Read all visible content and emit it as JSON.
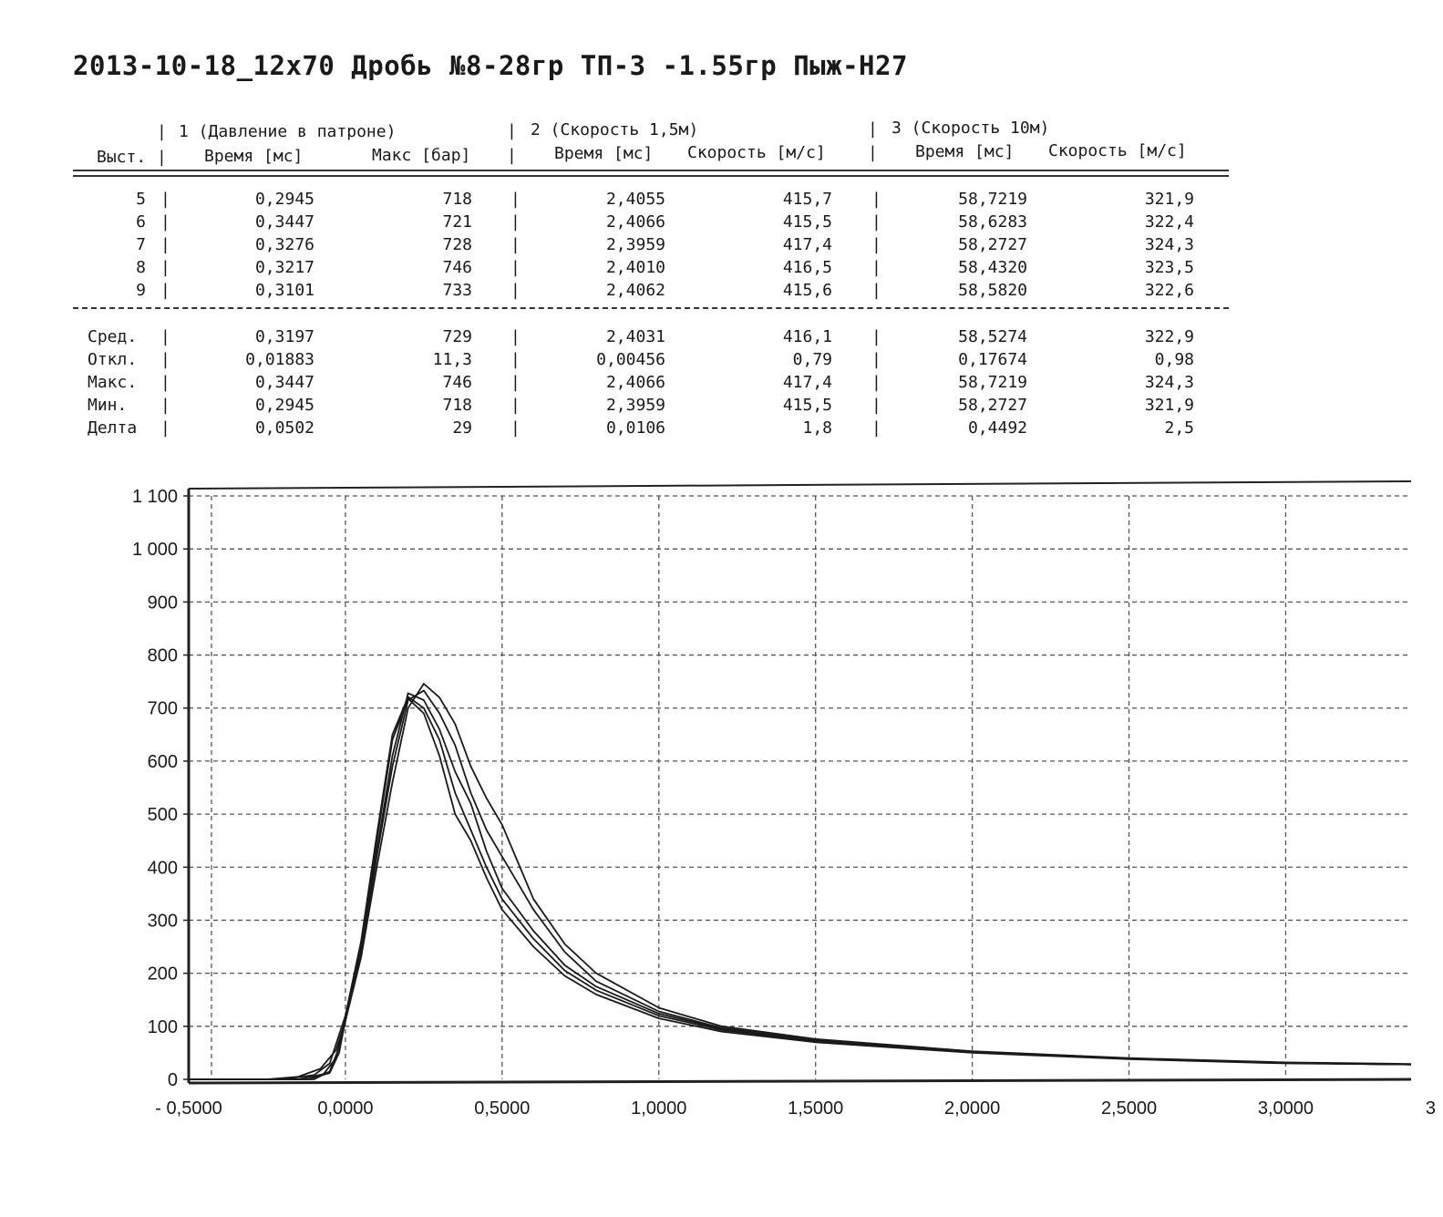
{
  "title": "2013-10-18_12x70 Дробь №8-28гр ТП-3 -1.55гр Пыж-H27",
  "table": {
    "groups": [
      "1 (Давление в патроне)",
      "2 (Скорость 1,5м)",
      "3 (Скорость 10м)"
    ],
    "row_header": "Выст.",
    "columns": [
      "Время [мс]",
      "Макс [бар]",
      "Время [мс]",
      "Скорость [м/с]",
      "Время [мс]",
      "Скорость [м/с]"
    ],
    "rows": [
      {
        "label": "5",
        "values": [
          "0,2945",
          "718",
          "2,4055",
          "415,7",
          "58,7219",
          "321,9"
        ]
      },
      {
        "label": "6",
        "values": [
          "0,3447",
          "721",
          "2,4066",
          "415,5",
          "58,6283",
          "322,4"
        ]
      },
      {
        "label": "7",
        "values": [
          "0,3276",
          "728",
          "2,3959",
          "417,4",
          "58,2727",
          "324,3"
        ]
      },
      {
        "label": "8",
        "values": [
          "0,3217",
          "746",
          "2,4010",
          "416,5",
          "58,4320",
          "323,5"
        ]
      },
      {
        "label": "9",
        "values": [
          "0,3101",
          "733",
          "2,4062",
          "415,6",
          "58,5820",
          "322,6"
        ]
      }
    ],
    "stats": [
      {
        "label": "Сред.",
        "values": [
          "0,3197",
          "729",
          "2,4031",
          "416,1",
          "58,5274",
          "322,9"
        ]
      },
      {
        "label": "Откл.",
        "values": [
          "0,01883",
          "11,3",
          "0,00456",
          "0,79",
          "0,17674",
          "0,98"
        ]
      },
      {
        "label": "Макс.",
        "values": [
          "0,3447",
          "746",
          "2,4066",
          "417,4",
          "58,7219",
          "324,3"
        ]
      },
      {
        "label": "Мин.",
        "values": [
          "0,2945",
          "718",
          "2,3959",
          "415,5",
          "58,2727",
          "321,9"
        ]
      },
      {
        "label": "Делта",
        "values": [
          "0,0502",
          "29",
          "0,0106",
          "1,8",
          "0,4492",
          "2,5"
        ]
      }
    ]
  },
  "chart_data": {
    "type": "line",
    "title": "",
    "xlabel": "",
    "ylabel": "",
    "xlim": [
      -0.5,
      3.4
    ],
    "ylim": [
      0,
      1100
    ],
    "grid": true,
    "x_ticks": [
      "- 0,5000",
      "0,0000",
      "0,5000",
      "1,0000",
      "1,5000",
      "2,0000",
      "2,5000",
      "3,0000",
      "3"
    ],
    "y_ticks": [
      "0",
      "100",
      "200",
      "300",
      "400",
      "500",
      "600",
      "700",
      "800",
      "900",
      "1 000",
      "1 100"
    ],
    "series": [
      {
        "x": [
          -0.5,
          -0.25,
          -0.15,
          -0.08,
          -0.03,
          0,
          0.05,
          0.1,
          0.15,
          0.2,
          0.25,
          0.3,
          0.35,
          0.4,
          0.45,
          0.5,
          0.6,
          0.7,
          0.8,
          1.0,
          1.2,
          1.5,
          2.0,
          2.5,
          3.0,
          3.4
        ],
        "values": [
          0,
          0,
          5,
          20,
          55,
          110,
          250,
          450,
          640,
          718,
          690,
          610,
          500,
          450,
          380,
          320,
          250,
          195,
          160,
          115,
          90,
          70,
          50,
          38,
          30,
          28
        ]
      },
      {
        "x": [
          -0.5,
          -0.2,
          -0.1,
          -0.05,
          0,
          0.05,
          0.1,
          0.15,
          0.2,
          0.25,
          0.3,
          0.35,
          0.4,
          0.45,
          0.5,
          0.6,
          0.7,
          0.8,
          1.0,
          1.2,
          1.5,
          2.0,
          2.5,
          3.0,
          3.4
        ],
        "values": [
          0,
          0,
          8,
          30,
          120,
          260,
          460,
          650,
          721,
          700,
          640,
          540,
          470,
          400,
          340,
          265,
          205,
          168,
          120,
          93,
          72,
          51,
          39,
          31,
          28
        ]
      },
      {
        "x": [
          -0.5,
          -0.15,
          -0.07,
          -0.03,
          0,
          0.05,
          0.1,
          0.15,
          0.2,
          0.25,
          0.3,
          0.35,
          0.4,
          0.45,
          0.5,
          0.6,
          0.7,
          0.8,
          1.0,
          1.2,
          1.5,
          2.0,
          2.5,
          3.0,
          3.4
        ],
        "values": [
          0,
          0,
          10,
          40,
          115,
          255,
          430,
          610,
          728,
          715,
          660,
          580,
          520,
          430,
          360,
          280,
          215,
          175,
          124,
          95,
          73,
          52,
          39,
          31,
          28
        ]
      },
      {
        "x": [
          -0.5,
          -0.1,
          -0.05,
          -0.02,
          0,
          0.05,
          0.1,
          0.15,
          0.2,
          0.25,
          0.3,
          0.35,
          0.4,
          0.45,
          0.5,
          0.55,
          0.6,
          0.7,
          0.8,
          1.0,
          1.2,
          1.5,
          2.0,
          2.5,
          3.0,
          3.4
        ],
        "values": [
          0,
          0,
          15,
          60,
          110,
          230,
          400,
          560,
          700,
          746,
          720,
          670,
          590,
          530,
          480,
          410,
          340,
          255,
          200,
          135,
          100,
          76,
          53,
          40,
          32,
          29
        ]
      },
      {
        "x": [
          -0.5,
          -0.12,
          -0.05,
          -0.02,
          0,
          0.05,
          0.1,
          0.15,
          0.2,
          0.25,
          0.3,
          0.35,
          0.4,
          0.45,
          0.5,
          0.6,
          0.7,
          0.8,
          1.0,
          1.2,
          1.5,
          2.0,
          2.5,
          3.0,
          3.4
        ],
        "values": [
          0,
          0,
          12,
          50,
          112,
          240,
          420,
          590,
          715,
          733,
          690,
          630,
          540,
          470,
          420,
          320,
          240,
          185,
          128,
          97,
          74,
          52,
          39,
          31,
          28
        ]
      }
    ]
  }
}
